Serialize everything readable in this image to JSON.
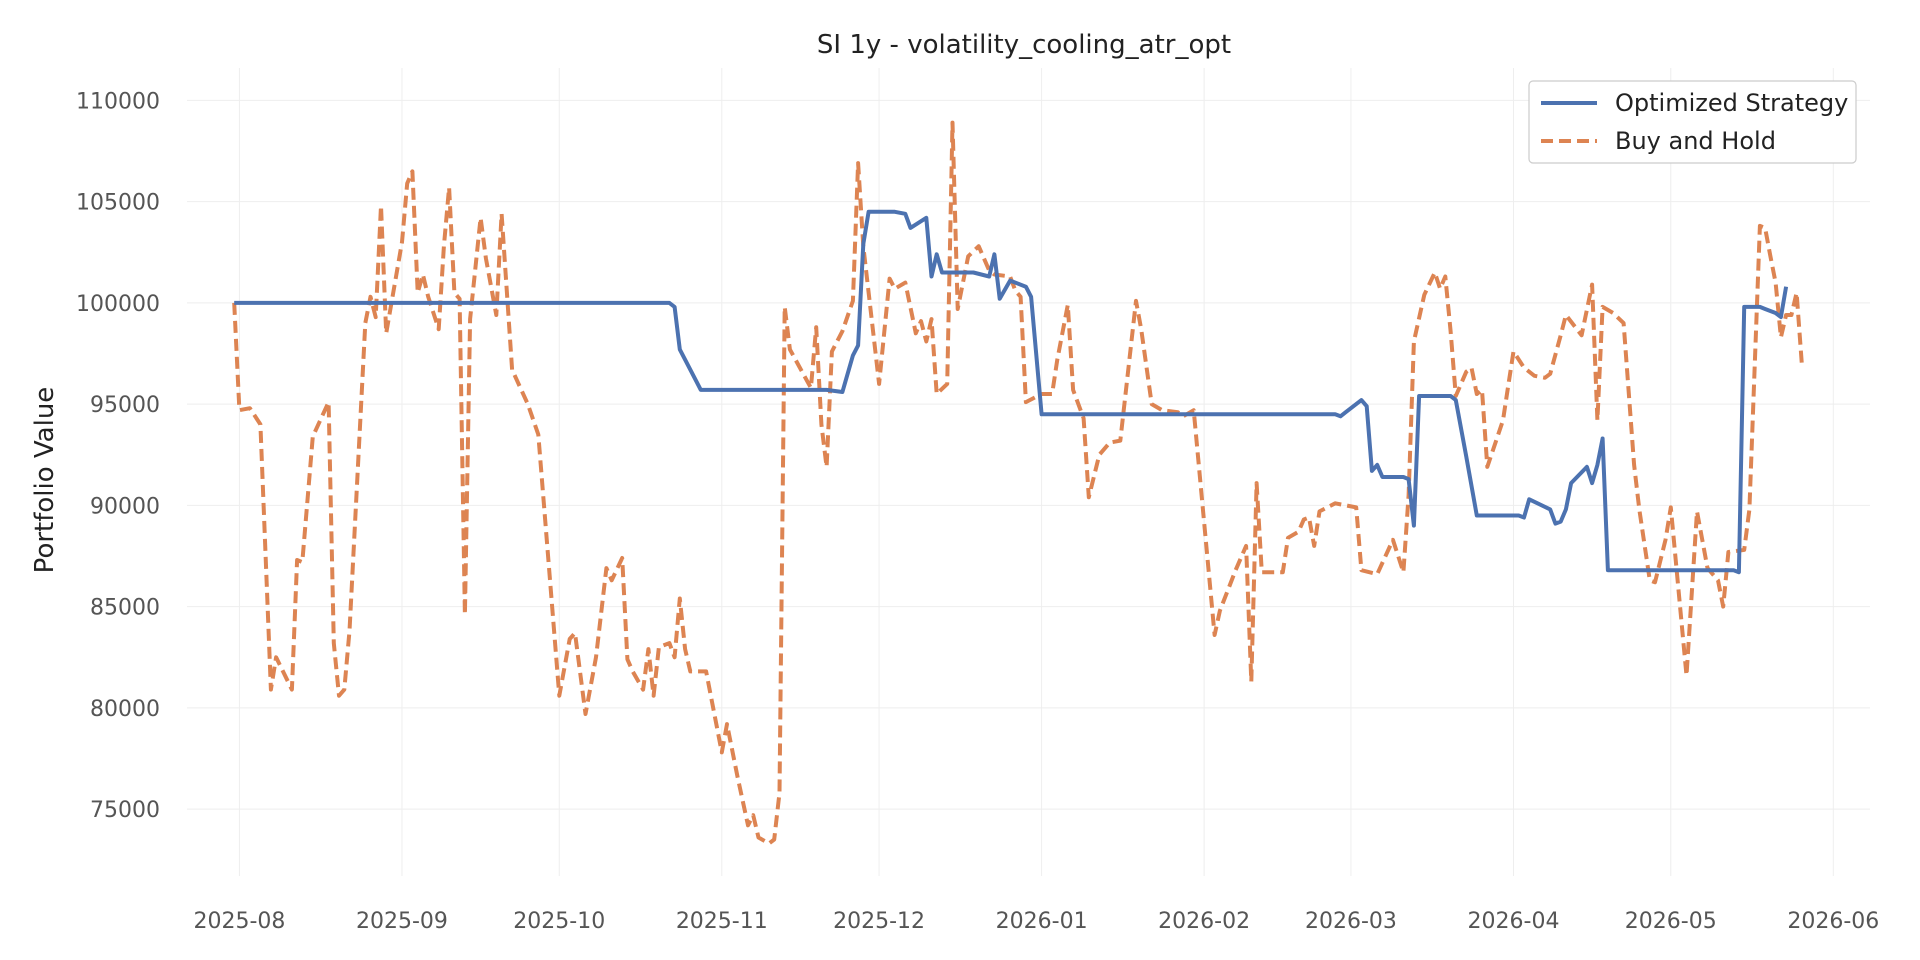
{
  "chart_data": {
    "type": "line",
    "title": "SI 1y - volatility_cooling_atr_opt",
    "xlabel": "",
    "ylabel": "Portfolio Value",
    "grid": true,
    "legend_position": "top-right",
    "xlim": [
      "2025-07-22",
      "2026-06-08"
    ],
    "ylim": [
      71500,
      111500
    ],
    "x_ticks": [
      "2025-08",
      "2025-09",
      "2025-10",
      "2025-11",
      "2025-12",
      "2026-01",
      "2026-02",
      "2026-03",
      "2026-04",
      "2026-05",
      "2026-06"
    ],
    "y_ticks": [
      75000,
      80000,
      85000,
      90000,
      95000,
      100000,
      105000,
      110000
    ],
    "series": [
      {
        "name": "Optimized Strategy",
        "color": "#4c72b0",
        "style": "solid",
        "points": [
          [
            "2025-07-31",
            100000
          ],
          [
            "2025-10-22",
            100000
          ],
          [
            "2025-10-23",
            99800
          ],
          [
            "2025-10-24",
            97700
          ],
          [
            "2025-10-28",
            95700
          ],
          [
            "2025-11-21",
            95700
          ],
          [
            "2025-11-24",
            95600
          ],
          [
            "2025-11-26",
            97400
          ],
          [
            "2025-11-27",
            97900
          ],
          [
            "2025-11-28",
            102900
          ],
          [
            "2025-11-29",
            104500
          ],
          [
            "2025-12-04",
            104500
          ],
          [
            "2025-12-06",
            104400
          ],
          [
            "2025-12-07",
            103700
          ],
          [
            "2025-12-10",
            104200
          ],
          [
            "2025-12-11",
            101300
          ],
          [
            "2025-12-12",
            102400
          ],
          [
            "2025-12-13",
            101500
          ],
          [
            "2025-12-19",
            101500
          ],
          [
            "2025-12-22",
            101300
          ],
          [
            "2025-12-23",
            102400
          ],
          [
            "2025-12-24",
            100200
          ],
          [
            "2025-12-26",
            101100
          ],
          [
            "2025-12-29",
            100800
          ],
          [
            "2025-12-30",
            100300
          ],
          [
            "2026-01-01",
            94500
          ],
          [
            "2026-02-26",
            94500
          ],
          [
            "2026-02-27",
            94400
          ],
          [
            "2026-02-28",
            94600
          ],
          [
            "2026-03-03",
            95200
          ],
          [
            "2026-03-04",
            94900
          ],
          [
            "2026-03-05",
            91700
          ],
          [
            "2026-03-06",
            92000
          ],
          [
            "2026-03-07",
            91400
          ],
          [
            "2026-03-11",
            91400
          ],
          [
            "2026-03-12",
            91300
          ],
          [
            "2026-03-13",
            89000
          ],
          [
            "2026-03-14",
            95400
          ],
          [
            "2026-03-20",
            95400
          ],
          [
            "2026-03-21",
            95200
          ],
          [
            "2026-03-23",
            92400
          ],
          [
            "2026-03-25",
            89500
          ],
          [
            "2026-04-02",
            89500
          ],
          [
            "2026-04-03",
            89400
          ],
          [
            "2026-04-04",
            90300
          ],
          [
            "2026-04-08",
            89800
          ],
          [
            "2026-04-09",
            89100
          ],
          [
            "2026-04-10",
            89200
          ],
          [
            "2026-04-11",
            89800
          ],
          [
            "2026-04-12",
            91100
          ],
          [
            "2026-04-15",
            91900
          ],
          [
            "2026-04-16",
            91100
          ],
          [
            "2026-04-17",
            92000
          ],
          [
            "2026-04-18",
            93300
          ],
          [
            "2026-04-19",
            86800
          ],
          [
            "2026-05-13",
            86800
          ],
          [
            "2026-05-14",
            86700
          ],
          [
            "2026-05-15",
            99800
          ],
          [
            "2026-05-18",
            99800
          ],
          [
            "2026-05-19",
            99700
          ],
          [
            "2026-05-21",
            99500
          ],
          [
            "2026-05-22",
            99300
          ],
          [
            "2026-05-23",
            100800
          ]
        ]
      },
      {
        "name": "Buy and Hold",
        "color": "#dd8452",
        "style": "dashed",
        "points": [
          [
            "2025-07-31",
            100000
          ],
          [
            "2025-08-01",
            94700
          ],
          [
            "2025-08-03",
            94800
          ],
          [
            "2025-08-05",
            94000
          ],
          [
            "2025-08-07",
            80900
          ],
          [
            "2025-08-08",
            82500
          ],
          [
            "2025-08-11",
            80900
          ],
          [
            "2025-08-12",
            87300
          ],
          [
            "2025-08-13",
            87200
          ],
          [
            "2025-08-15",
            93400
          ],
          [
            "2025-08-18",
            95100
          ],
          [
            "2025-08-19",
            83200
          ],
          [
            "2025-08-20",
            80600
          ],
          [
            "2025-08-21",
            80900
          ],
          [
            "2025-08-22",
            83800
          ],
          [
            "2025-08-25",
            99000
          ],
          [
            "2025-08-26",
            100300
          ],
          [
            "2025-08-27",
            99300
          ],
          [
            "2025-08-28",
            104800
          ],
          [
            "2025-08-29",
            98500
          ],
          [
            "2025-09-01",
            103000
          ],
          [
            "2025-09-02",
            105900
          ],
          [
            "2025-09-03",
            106500
          ],
          [
            "2025-09-04",
            100500
          ],
          [
            "2025-09-05",
            101400
          ],
          [
            "2025-09-06",
            100300
          ],
          [
            "2025-09-08",
            98700
          ],
          [
            "2025-09-09",
            102800
          ],
          [
            "2025-09-10",
            105700
          ],
          [
            "2025-09-11",
            100500
          ],
          [
            "2025-09-12",
            100200
          ],
          [
            "2025-09-13",
            84600
          ],
          [
            "2025-09-14",
            99200
          ],
          [
            "2025-09-16",
            104200
          ],
          [
            "2025-09-17",
            102200
          ],
          [
            "2025-09-19",
            99400
          ],
          [
            "2025-09-20",
            104400
          ],
          [
            "2025-09-22",
            96700
          ],
          [
            "2025-09-25",
            95000
          ],
          [
            "2025-09-27",
            93500
          ],
          [
            "2025-10-01",
            80600
          ],
          [
            "2025-10-03",
            83400
          ],
          [
            "2025-10-04",
            83700
          ],
          [
            "2025-10-06",
            79700
          ],
          [
            "2025-10-08",
            82500
          ],
          [
            "2025-10-10",
            86900
          ],
          [
            "2025-10-11",
            86300
          ],
          [
            "2025-10-13",
            87400
          ],
          [
            "2025-10-14",
            82400
          ],
          [
            "2025-10-15",
            81800
          ],
          [
            "2025-10-17",
            80900
          ],
          [
            "2025-10-18",
            82900
          ],
          [
            "2025-10-19",
            80600
          ],
          [
            "2025-10-20",
            83000
          ],
          [
            "2025-10-22",
            83200
          ],
          [
            "2025-10-23",
            82500
          ],
          [
            "2025-10-24",
            85400
          ],
          [
            "2025-10-25",
            82900
          ],
          [
            "2025-10-26",
            81800
          ],
          [
            "2025-10-29",
            81800
          ],
          [
            "2025-11-01",
            77800
          ],
          [
            "2025-11-02",
            79200
          ],
          [
            "2025-11-04",
            76600
          ],
          [
            "2025-11-06",
            74200
          ],
          [
            "2025-11-07",
            74700
          ],
          [
            "2025-11-08",
            73600
          ],
          [
            "2025-11-10",
            73300
          ],
          [
            "2025-11-11",
            73500
          ],
          [
            "2025-11-12",
            75800
          ],
          [
            "2025-11-13",
            99800
          ],
          [
            "2025-11-14",
            97700
          ],
          [
            "2025-11-18",
            95800
          ],
          [
            "2025-11-19",
            98800
          ],
          [
            "2025-11-20",
            94000
          ],
          [
            "2025-11-21",
            91900
          ],
          [
            "2025-11-22",
            97600
          ],
          [
            "2025-11-24",
            98600
          ],
          [
            "2025-11-26",
            100100
          ],
          [
            "2025-11-27",
            106900
          ],
          [
            "2025-11-28",
            102800
          ],
          [
            "2025-12-01",
            96000
          ],
          [
            "2025-12-03",
            101200
          ],
          [
            "2025-12-04",
            100700
          ],
          [
            "2025-12-06",
            101000
          ],
          [
            "2025-12-08",
            98500
          ],
          [
            "2025-12-09",
            99100
          ],
          [
            "2025-12-10",
            98100
          ],
          [
            "2025-12-11",
            99200
          ],
          [
            "2025-12-12",
            95500
          ],
          [
            "2025-12-14",
            96000
          ],
          [
            "2025-12-15",
            108900
          ],
          [
            "2025-12-16",
            99700
          ],
          [
            "2025-12-18",
            102300
          ],
          [
            "2025-12-20",
            102800
          ],
          [
            "2025-12-22",
            101600
          ],
          [
            "2025-12-23",
            101400
          ],
          [
            "2025-12-26",
            101300
          ],
          [
            "2025-12-27",
            100600
          ],
          [
            "2025-12-28",
            100300
          ],
          [
            "2025-12-29",
            95100
          ],
          [
            "2026-01-01",
            95500
          ],
          [
            "2026-01-03",
            95500
          ],
          [
            "2026-01-04",
            97200
          ],
          [
            "2026-01-06",
            99900
          ],
          [
            "2026-01-07",
            95700
          ],
          [
            "2026-01-09",
            94300
          ],
          [
            "2026-01-10",
            90400
          ],
          [
            "2026-01-12",
            92500
          ],
          [
            "2026-01-14",
            93100
          ],
          [
            "2026-01-16",
            93200
          ],
          [
            "2026-01-19",
            100100
          ],
          [
            "2026-01-20",
            98700
          ],
          [
            "2026-01-22",
            95000
          ],
          [
            "2026-01-24",
            94700
          ],
          [
            "2026-01-27",
            94600
          ],
          [
            "2026-01-28",
            94400
          ],
          [
            "2026-01-30",
            94700
          ],
          [
            "2026-02-03",
            83600
          ],
          [
            "2026-02-04",
            84800
          ],
          [
            "2026-02-07",
            86800
          ],
          [
            "2026-02-09",
            88000
          ],
          [
            "2026-02-10",
            81300
          ],
          [
            "2026-02-11",
            91100
          ],
          [
            "2026-02-12",
            86700
          ],
          [
            "2026-02-16",
            86700
          ],
          [
            "2026-02-17",
            88400
          ],
          [
            "2026-02-19",
            88700
          ],
          [
            "2026-02-20",
            89300
          ],
          [
            "2026-02-21",
            89400
          ],
          [
            "2026-02-22",
            88000
          ],
          [
            "2026-02-23",
            89700
          ],
          [
            "2026-02-26",
            90100
          ],
          [
            "2026-03-02",
            89900
          ],
          [
            "2026-03-03",
            86800
          ],
          [
            "2026-03-06",
            86600
          ],
          [
            "2026-03-09",
            88300
          ],
          [
            "2026-03-11",
            86700
          ],
          [
            "2026-03-12",
            90500
          ],
          [
            "2026-03-13",
            98100
          ],
          [
            "2026-03-15",
            100400
          ],
          [
            "2026-03-17",
            101500
          ],
          [
            "2026-03-18",
            100700
          ],
          [
            "2026-03-19",
            101300
          ],
          [
            "2026-03-20",
            98600
          ],
          [
            "2026-03-21",
            95400
          ],
          [
            "2026-03-23",
            96600
          ],
          [
            "2026-03-24",
            96800
          ],
          [
            "2026-03-25",
            95500
          ],
          [
            "2026-03-26",
            95700
          ],
          [
            "2026-03-27",
            91900
          ],
          [
            "2026-03-30",
            94200
          ],
          [
            "2026-03-31",
            95900
          ],
          [
            "2026-04-01",
            97600
          ],
          [
            "2026-04-03",
            96800
          ],
          [
            "2026-04-05",
            96400
          ],
          [
            "2026-04-07",
            96300
          ],
          [
            "2026-04-08",
            96500
          ],
          [
            "2026-04-10",
            98400
          ],
          [
            "2026-04-11",
            99400
          ],
          [
            "2026-04-14",
            98400
          ],
          [
            "2026-04-16",
            100900
          ],
          [
            "2026-04-17",
            94200
          ],
          [
            "2026-04-18",
            99800
          ],
          [
            "2026-04-20",
            99500
          ],
          [
            "2026-04-22",
            99000
          ],
          [
            "2026-04-24",
            92000
          ],
          [
            "2026-04-25",
            89800
          ],
          [
            "2026-04-27",
            86300
          ],
          [
            "2026-04-28",
            86200
          ],
          [
            "2026-04-30",
            88300
          ],
          [
            "2026-05-01",
            89900
          ],
          [
            "2026-05-04",
            81600
          ],
          [
            "2026-05-06",
            89700
          ],
          [
            "2026-05-08",
            86900
          ],
          [
            "2026-05-10",
            86300
          ],
          [
            "2026-05-11",
            85000
          ],
          [
            "2026-05-12",
            87700
          ],
          [
            "2026-05-15",
            87800
          ],
          [
            "2026-05-16",
            89800
          ],
          [
            "2026-05-18",
            103800
          ],
          [
            "2026-05-19",
            103700
          ],
          [
            "2026-05-20",
            102300
          ],
          [
            "2026-05-21",
            101000
          ],
          [
            "2026-05-22",
            98300
          ],
          [
            "2026-05-23",
            99400
          ],
          [
            "2026-05-24",
            99400
          ],
          [
            "2026-05-25",
            100500
          ],
          [
            "2026-05-26",
            97000
          ]
        ]
      }
    ]
  }
}
